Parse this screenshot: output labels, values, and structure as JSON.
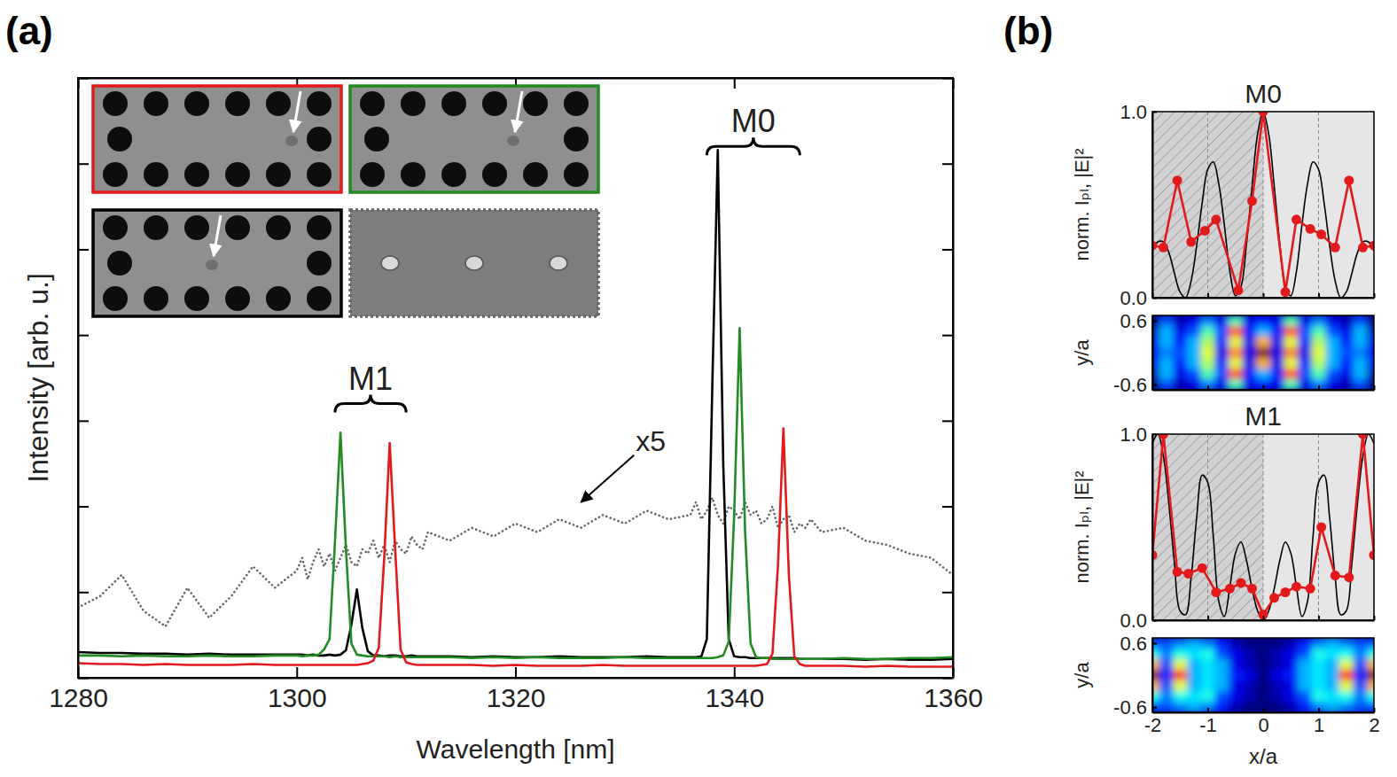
{
  "chart_data": [
    {
      "type": "line",
      "panel": "(a)",
      "x_label": "Wavelength [nm]",
      "y_label": "Intensity [arb. u.]",
      "xlim": [
        1280,
        1360
      ],
      "xticks": [
        1280,
        1300,
        1320,
        1340,
        1360
      ],
      "ylim": [
        0,
        7
      ],
      "yticks": [
        0,
        1,
        2,
        3,
        4,
        5,
        6,
        7
      ],
      "tick_labels": "x",
      "x": [
        1280,
        1282,
        1284,
        1286,
        1288,
        1290,
        1292,
        1294,
        1296,
        1298,
        1300,
        1300.5,
        1301,
        1301.5,
        1302,
        1302.5,
        1303,
        1303.5,
        1304,
        1304.5,
        1305,
        1305.5,
        1306,
        1306.5,
        1307,
        1307.5,
        1308,
        1308.5,
        1309,
        1309.5,
        1310,
        1310.5,
        1311,
        1311.5,
        1312,
        1314,
        1316,
        1318,
        1320,
        1322,
        1324,
        1326,
        1328,
        1330,
        1332,
        1334,
        1336,
        1336.5,
        1337,
        1337.5,
        1338,
        1338.5,
        1339,
        1339.5,
        1340,
        1340.5,
        1341,
        1341.5,
        1342,
        1342.5,
        1343,
        1343.5,
        1344,
        1344.5,
        1345,
        1345.5,
        1346,
        1346.5,
        1347,
        1348,
        1350,
        1352,
        1354,
        1356,
        1358,
        1360
      ],
      "series": [
        {
          "color": "#000000",
          "line_style": "solid",
          "values": [
            0.3,
            0.29,
            0.29,
            0.28,
            0.28,
            0.27,
            0.28,
            0.27,
            0.27,
            0.27,
            0.27,
            0.27,
            0.26,
            0.27,
            0.26,
            0.26,
            0.27,
            0.26,
            0.27,
            0.32,
            0.62,
            1.03,
            0.58,
            0.31,
            0.26,
            0.26,
            0.25,
            0.26,
            0.26,
            0.25,
            0.25,
            0.26,
            0.25,
            0.25,
            0.25,
            0.25,
            0.24,
            0.25,
            0.24,
            0.24,
            0.25,
            0.24,
            0.24,
            0.24,
            0.25,
            0.24,
            0.24,
            0.24,
            0.25,
            0.45,
            3.4,
            6.16,
            2.5,
            0.45,
            0.25,
            0.24,
            0.24,
            0.23,
            0.23,
            0.23,
            0.23,
            0.23,
            0.23,
            0.23,
            0.23,
            0.23,
            0.22,
            0.22,
            0.22,
            0.22,
            0.22,
            0.21,
            0.22,
            0.21,
            0.21,
            0.22
          ]
        },
        {
          "color": "#228b22",
          "line_style": "solid",
          "values": [
            0.26,
            0.26,
            0.25,
            0.26,
            0.25,
            0.25,
            0.26,
            0.25,
            0.25,
            0.26,
            0.26,
            0.25,
            0.26,
            0.26,
            0.27,
            0.33,
            0.45,
            1.6,
            2.86,
            1.5,
            0.4,
            0.27,
            0.26,
            0.25,
            0.25,
            0.25,
            0.25,
            0.24,
            0.25,
            0.24,
            0.24,
            0.24,
            0.24,
            0.24,
            0.24,
            0.24,
            0.23,
            0.24,
            0.23,
            0.24,
            0.23,
            0.23,
            0.23,
            0.24,
            0.23,
            0.23,
            0.23,
            0.23,
            0.23,
            0.23,
            0.23,
            0.24,
            0.26,
            0.42,
            1.9,
            4.08,
            1.7,
            0.4,
            0.24,
            0.23,
            0.23,
            0.22,
            0.22,
            0.22,
            0.22,
            0.22,
            0.22,
            0.22,
            0.22,
            0.22,
            0.23,
            0.22,
            0.22,
            0.23,
            0.23,
            0.24
          ]
        },
        {
          "color": "#e31a1c",
          "line_style": "solid",
          "values": [
            0.17,
            0.16,
            0.16,
            0.15,
            0.16,
            0.15,
            0.15,
            0.15,
            0.16,
            0.15,
            0.15,
            0.15,
            0.15,
            0.15,
            0.15,
            0.15,
            0.15,
            0.15,
            0.15,
            0.15,
            0.15,
            0.15,
            0.16,
            0.17,
            0.2,
            0.35,
            1.4,
            2.74,
            1.5,
            0.33,
            0.18,
            0.16,
            0.15,
            0.15,
            0.15,
            0.15,
            0.15,
            0.14,
            0.15,
            0.14,
            0.14,
            0.14,
            0.15,
            0.14,
            0.14,
            0.14,
            0.14,
            0.14,
            0.14,
            0.14,
            0.14,
            0.14,
            0.14,
            0.14,
            0.14,
            0.14,
            0.14,
            0.14,
            0.14,
            0.15,
            0.16,
            0.28,
            1.3,
            2.91,
            1.2,
            0.25,
            0.16,
            0.14,
            0.14,
            0.14,
            0.14,
            0.13,
            0.14,
            0.13,
            0.13,
            0.13
          ]
        },
        {
          "color": "#666666",
          "line_style": "dotted",
          "values": [
            0.82,
            0.95,
            1.2,
            0.78,
            0.6,
            1.05,
            0.7,
            0.95,
            1.3,
            1.05,
            1.25,
            1.4,
            1.15,
            1.35,
            1.5,
            1.3,
            1.45,
            1.25,
            1.4,
            1.55,
            1.35,
            1.3,
            1.5,
            1.45,
            1.6,
            1.4,
            1.55,
            1.35,
            1.6,
            1.5,
            1.45,
            1.65,
            1.55,
            1.5,
            1.7,
            1.6,
            1.75,
            1.65,
            1.8,
            1.7,
            1.85,
            1.75,
            1.9,
            1.8,
            1.95,
            1.85,
            1.9,
            2.05,
            1.85,
            1.95,
            2.1,
            1.9,
            1.8,
            2.0,
            1.95,
            1.85,
            2.05,
            1.9,
            1.95,
            1.8,
            1.85,
            2.0,
            1.75,
            1.85,
            1.9,
            1.7,
            1.8,
            1.75,
            1.85,
            1.7,
            1.75,
            1.6,
            1.55,
            1.45,
            1.4,
            1.2
          ]
        }
      ],
      "annotations": [
        {
          "text": "M0",
          "x": [
            1337.5,
            1346
          ],
          "y": 6.2
        },
        {
          "text": "M1",
          "x": [
            1303.5,
            1310
          ],
          "y": 3.2
        },
        {
          "text": "x5",
          "x": 1331,
          "y": 2.65,
          "arrow_to": [
            1326,
            2.05
          ]
        }
      ]
    },
    {
      "type": "line",
      "panel": "(b)",
      "title": "M0",
      "y_label": "norm. Iₚₗ, |E|²",
      "xlim": [
        -2,
        2
      ],
      "xticks": [
        -2,
        -1,
        0,
        1,
        2
      ],
      "ylim": [
        0,
        1
      ],
      "yticks": [
        {
          "value": 0,
          "label": "0.0"
        },
        {
          "value": 1,
          "label": "1.0"
        }
      ],
      "tick_labels": "y",
      "grid": true,
      "shaded": [
        [
          -2,
          0
        ],
        [
          0,
          2
        ]
      ],
      "series": [
        {
          "color": "#000000",
          "line_style": "solid",
          "x": [
            -2,
            -1.9,
            -1.8,
            -1.7,
            -1.6,
            -1.5,
            -1.4,
            -1.3,
            -1.2,
            -1.1,
            -1,
            -0.9,
            -0.8,
            -0.7,
            -0.6,
            -0.5,
            -0.4,
            -0.3,
            -0.2,
            -0.1,
            0,
            0.1,
            0.2,
            0.3,
            0.4,
            0.5,
            0.6,
            0.7,
            0.8,
            0.9,
            1,
            1.1,
            1.2,
            1.3,
            1.4,
            1.5,
            1.6,
            1.7,
            1.8,
            1.9,
            2
          ],
          "values": [
            0.25,
            0.3,
            0.3,
            0.24,
            0.13,
            0.03,
            0.0,
            0.09,
            0.28,
            0.51,
            0.69,
            0.73,
            0.61,
            0.39,
            0.14,
            0.01,
            0.06,
            0.29,
            0.6,
            0.88,
            1.0,
            0.88,
            0.6,
            0.29,
            0.06,
            0.01,
            0.14,
            0.39,
            0.61,
            0.73,
            0.69,
            0.51,
            0.28,
            0.09,
            0.0,
            0.03,
            0.13,
            0.24,
            0.3,
            0.3,
            0.25
          ]
        },
        {
          "color": "#e31a1c",
          "line_style": "solid",
          "marker": "circle",
          "x": [
            -2.0,
            -1.8,
            -1.55,
            -1.3,
            -1.05,
            -0.85,
            -0.45,
            -0.2,
            0.0,
            0.4,
            0.6,
            0.85,
            1.05,
            1.3,
            1.55,
            1.8,
            2.0
          ],
          "values": [
            0.28,
            0.27,
            0.63,
            0.3,
            0.36,
            0.42,
            0.04,
            0.52,
            1.0,
            0.03,
            0.42,
            0.37,
            0.34,
            0.27,
            0.63,
            0.27,
            0.28
          ]
        }
      ]
    },
    {
      "type": "heatmap",
      "y_label": "y/a",
      "xlim": [
        -2,
        2
      ],
      "xticks": [
        -2,
        -1,
        0,
        1,
        2
      ],
      "ylim": [
        -0.7,
        0.7
      ],
      "yticks": [
        0.6,
        -0.6
      ],
      "tick_labels": "y",
      "color_range": [
        0,
        1
      ],
      "x": [
        -2,
        -1.75,
        -1.5,
        -1.25,
        -1,
        -0.75,
        -0.5,
        -0.25,
        0,
        0.25,
        0.5,
        0.75,
        1,
        1.25,
        1.5,
        1.75,
        2
      ],
      "y": [
        0.6,
        0.4,
        0.2,
        0,
        -0.2,
        -0.4,
        -0.6
      ],
      "cells": [
        [
          0.0,
          0.2,
          0.05,
          0.1,
          0.25,
          0.1,
          0.45,
          0.1,
          0.15,
          0.1,
          0.45,
          0.1,
          0.25,
          0.1,
          0.05,
          0.2,
          0.0
        ],
        [
          0.05,
          0.3,
          0.1,
          0.2,
          0.45,
          0.2,
          0.8,
          0.15,
          0.3,
          0.15,
          0.8,
          0.2,
          0.45,
          0.2,
          0.1,
          0.3,
          0.05
        ],
        [
          0.1,
          0.3,
          0.15,
          0.3,
          0.55,
          0.15,
          0.6,
          0.1,
          0.7,
          0.1,
          0.6,
          0.15,
          0.55,
          0.3,
          0.15,
          0.3,
          0.1
        ],
        [
          0.1,
          0.25,
          0.2,
          0.3,
          0.6,
          0.1,
          0.75,
          0.1,
          1.0,
          0.1,
          0.75,
          0.1,
          0.6,
          0.3,
          0.2,
          0.25,
          0.1
        ],
        [
          0.1,
          0.3,
          0.15,
          0.3,
          0.55,
          0.15,
          0.6,
          0.1,
          0.7,
          0.1,
          0.6,
          0.15,
          0.55,
          0.3,
          0.15,
          0.3,
          0.1
        ],
        [
          0.05,
          0.3,
          0.1,
          0.2,
          0.45,
          0.2,
          0.8,
          0.15,
          0.3,
          0.15,
          0.8,
          0.2,
          0.45,
          0.2,
          0.1,
          0.3,
          0.05
        ],
        [
          0.0,
          0.2,
          0.05,
          0.1,
          0.25,
          0.1,
          0.45,
          0.1,
          0.15,
          0.1,
          0.45,
          0.1,
          0.25,
          0.1,
          0.05,
          0.2,
          0.0
        ]
      ]
    },
    {
      "type": "line",
      "title": "M1",
      "y_label": "norm. Iₚₗ, |E|²",
      "xlim": [
        -2,
        2
      ],
      "xticks": [
        -2,
        -1,
        0,
        1,
        2
      ],
      "ylim": [
        0,
        1
      ],
      "yticks": [
        {
          "value": 0,
          "label": "0.0"
        },
        {
          "value": 1,
          "label": "1.0"
        }
      ],
      "tick_labels": "y",
      "grid": true,
      "shaded": [
        [
          -2,
          0
        ],
        [
          0,
          2
        ]
      ],
      "series": [
        {
          "color": "#000000",
          "line_style": "solid",
          "x": [
            -2,
            -1.9,
            -1.8,
            -1.7,
            -1.6,
            -1.5,
            -1.4,
            -1.3,
            -1.2,
            -1.1,
            -1,
            -0.9,
            -0.8,
            -0.7,
            -0.6,
            -0.5,
            -0.4,
            -0.3,
            -0.2,
            -0.1,
            0,
            0.1,
            0.2,
            0.3,
            0.4,
            0.5,
            0.6,
            0.7,
            0.8,
            0.9,
            1,
            1.1,
            1.2,
            1.3,
            1.4,
            1.5,
            1.6,
            1.7,
            1.8,
            1.9,
            2
          ],
          "values": [
            0.95,
            1.0,
            0.88,
            0.62,
            0.3,
            0.05,
            0.03,
            0.23,
            0.55,
            0.78,
            0.74,
            0.45,
            0.1,
            0.02,
            0.18,
            0.36,
            0.42,
            0.32,
            0.17,
            0.05,
            0.0,
            0.05,
            0.17,
            0.32,
            0.42,
            0.36,
            0.18,
            0.02,
            0.1,
            0.45,
            0.74,
            0.78,
            0.55,
            0.23,
            0.03,
            0.05,
            0.3,
            0.62,
            0.88,
            1.0,
            0.95
          ]
        },
        {
          "color": "#e31a1c",
          "line_style": "solid",
          "marker": "circle",
          "x": [
            -2.0,
            -1.8,
            -1.55,
            -1.35,
            -1.1,
            -0.85,
            -0.6,
            -0.4,
            -0.2,
            0.0,
            0.2,
            0.4,
            0.6,
            0.85,
            1.05,
            1.3,
            1.55,
            1.8,
            2.0
          ],
          "values": [
            0.35,
            1.0,
            0.26,
            0.25,
            0.28,
            0.15,
            0.17,
            0.2,
            0.17,
            0.03,
            0.12,
            0.15,
            0.18,
            0.17,
            0.5,
            0.24,
            0.23,
            1.0,
            0.35
          ]
        }
      ]
    },
    {
      "type": "heatmap",
      "x_label": "x/a",
      "y_label": "y/a",
      "xlim": [
        -2,
        2
      ],
      "xticks": [
        -2,
        -1,
        0,
        1,
        2
      ],
      "ylim": [
        -0.7,
        0.7
      ],
      "yticks": [
        0.6,
        -0.6
      ],
      "tick_labels": true,
      "color_range": [
        0,
        1
      ],
      "x": [
        -2,
        -1.75,
        -1.5,
        -1.25,
        -1,
        -0.75,
        -0.5,
        -0.25,
        0,
        0.25,
        0.5,
        0.75,
        1,
        1.25,
        1.5,
        1.75,
        2
      ],
      "y": [
        0.6,
        0.4,
        0.2,
        0,
        -0.2,
        -0.4,
        -0.6
      ],
      "cells": [
        [
          0.2,
          0.2,
          0.25,
          0.3,
          0.25,
          0.15,
          0.05,
          0.0,
          0.0,
          0.0,
          0.05,
          0.15,
          0.25,
          0.3,
          0.25,
          0.2,
          0.2
        ],
        [
          0.4,
          0.25,
          0.4,
          0.35,
          0.4,
          0.2,
          0.1,
          0.05,
          0.0,
          0.05,
          0.1,
          0.2,
          0.4,
          0.35,
          0.4,
          0.25,
          0.4
        ],
        [
          0.7,
          0.2,
          0.6,
          0.3,
          0.35,
          0.3,
          0.1,
          0.05,
          0.0,
          0.05,
          0.1,
          0.3,
          0.35,
          0.3,
          0.6,
          0.2,
          0.7
        ],
        [
          1.0,
          0.15,
          0.85,
          0.3,
          0.35,
          0.3,
          0.15,
          0.1,
          0.0,
          0.1,
          0.15,
          0.3,
          0.35,
          0.3,
          0.85,
          0.15,
          1.0
        ],
        [
          0.7,
          0.2,
          0.6,
          0.3,
          0.35,
          0.3,
          0.1,
          0.05,
          0.0,
          0.05,
          0.1,
          0.3,
          0.35,
          0.3,
          0.6,
          0.2,
          0.7
        ],
        [
          0.4,
          0.25,
          0.4,
          0.35,
          0.4,
          0.2,
          0.1,
          0.05,
          0.0,
          0.05,
          0.1,
          0.2,
          0.4,
          0.35,
          0.4,
          0.25,
          0.4
        ],
        [
          0.2,
          0.2,
          0.25,
          0.3,
          0.25,
          0.15,
          0.05,
          0.0,
          0.0,
          0.0,
          0.05,
          0.15,
          0.25,
          0.3,
          0.25,
          0.2,
          0.2
        ]
      ]
    }
  ]
}
